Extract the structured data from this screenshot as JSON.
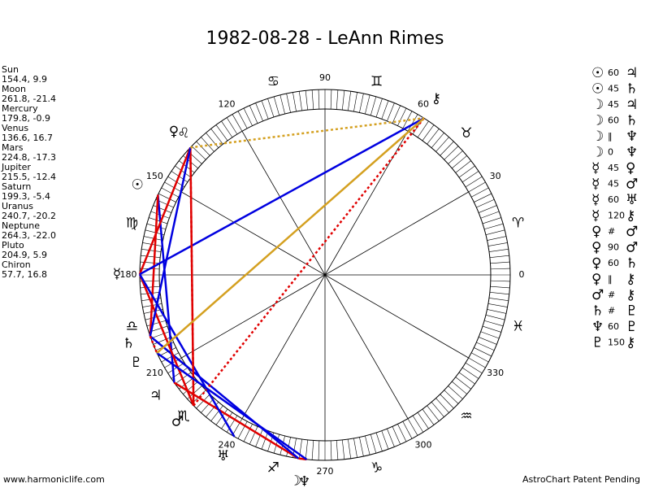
{
  "title": "1982-08-28 - LeAnn Rimes",
  "footer_left": "www.harmoniclife.com",
  "footer_right": "AstroChart Patent Pending",
  "planets": [
    {
      "name": "Sun",
      "glyph": "☉",
      "longitude": 154.4,
      "latitude": 9.9,
      "label": "154.4, 9.9"
    },
    {
      "name": "Moon",
      "glyph": "☽",
      "longitude": 261.8,
      "latitude": -21.4,
      "label": "261.8, -21.4"
    },
    {
      "name": "Mercury",
      "glyph": "☿",
      "longitude": 179.8,
      "latitude": -0.9,
      "label": "179.8, -0.9"
    },
    {
      "name": "Venus",
      "glyph": "♀",
      "longitude": 136.6,
      "latitude": 16.7,
      "label": "136.6, 16.7"
    },
    {
      "name": "Mars",
      "glyph": "♂",
      "longitude": 224.8,
      "latitude": -17.3,
      "label": "224.8, -17.3"
    },
    {
      "name": "Jupiter",
      "glyph": "♃",
      "longitude": 215.5,
      "latitude": -12.4,
      "label": "215.5, -12.4"
    },
    {
      "name": "Saturn",
      "glyph": "♄",
      "longitude": 199.3,
      "latitude": -5.4,
      "label": "199.3, -5.4"
    },
    {
      "name": "Uranus",
      "glyph": "♅",
      "longitude": 240.7,
      "latitude": -20.2,
      "label": "240.7, -20.2"
    },
    {
      "name": "Neptune",
      "glyph": "♆",
      "longitude": 264.3,
      "latitude": -22.0,
      "label": "264.3, -22.0"
    },
    {
      "name": "Pluto",
      "glyph": "♇",
      "longitude": 204.9,
      "latitude": 5.9,
      "label": "204.9, 5.9"
    },
    {
      "name": "Chiron",
      "glyph": "⚷",
      "longitude": 57.7,
      "latitude": 16.8,
      "label": "57.7, 16.8"
    }
  ],
  "aspects": [
    {
      "p1": "Sun",
      "aspect": "60",
      "p2": "Jupiter"
    },
    {
      "p1": "Sun",
      "aspect": "45",
      "p2": "Saturn"
    },
    {
      "p1": "Moon",
      "aspect": "45",
      "p2": "Jupiter"
    },
    {
      "p1": "Moon",
      "aspect": "60",
      "p2": "Saturn"
    },
    {
      "p1": "Moon",
      "aspect": "‖",
      "p2": "Neptune"
    },
    {
      "p1": "Moon",
      "aspect": "0",
      "p2": "Neptune"
    },
    {
      "p1": "Mercury",
      "aspect": "45",
      "p2": "Venus"
    },
    {
      "p1": "Mercury",
      "aspect": "45",
      "p2": "Mars"
    },
    {
      "p1": "Mercury",
      "aspect": "60",
      "p2": "Uranus"
    },
    {
      "p1": "Mercury",
      "aspect": "120",
      "p2": "Chiron"
    },
    {
      "p1": "Venus",
      "aspect": "#",
      "p2": "Mars"
    },
    {
      "p1": "Venus",
      "aspect": "90",
      "p2": "Mars"
    },
    {
      "p1": "Venus",
      "aspect": "60",
      "p2": "Saturn"
    },
    {
      "p1": "Venus",
      "aspect": "‖",
      "p2": "Chiron"
    },
    {
      "p1": "Mars",
      "aspect": "#",
      "p2": "Chiron"
    },
    {
      "p1": "Saturn",
      "aspect": "#",
      "p2": "Pluto"
    },
    {
      "p1": "Neptune",
      "aspect": "60",
      "p2": "Pluto"
    },
    {
      "p1": "Pluto",
      "aspect": "150",
      "p2": "Chiron"
    }
  ],
  "aspect_styles": {
    "0": {
      "color": "#e00000",
      "dotted": false
    },
    "45": {
      "color": "#e00000",
      "dotted": false
    },
    "60": {
      "color": "#0000e0",
      "dotted": false
    },
    "90": {
      "color": "#e00000",
      "dotted": false
    },
    "120": {
      "color": "#0000e0",
      "dotted": false
    },
    "150": {
      "color": "#d4a020",
      "dotted": false
    },
    "‖": {
      "color": "#d4a020",
      "dotted": true
    },
    "#": {
      "color": "#e00000",
      "dotted": true
    }
  },
  "degree_labels": [
    0,
    30,
    60,
    90,
    120,
    150,
    180,
    210,
    240,
    270,
    300,
    330
  ],
  "signs": [
    "♈",
    "♉",
    "♊",
    "♋",
    "♌",
    "♍",
    "♎",
    "♏",
    "♐",
    "♑",
    "♒",
    "♓"
  ]
}
